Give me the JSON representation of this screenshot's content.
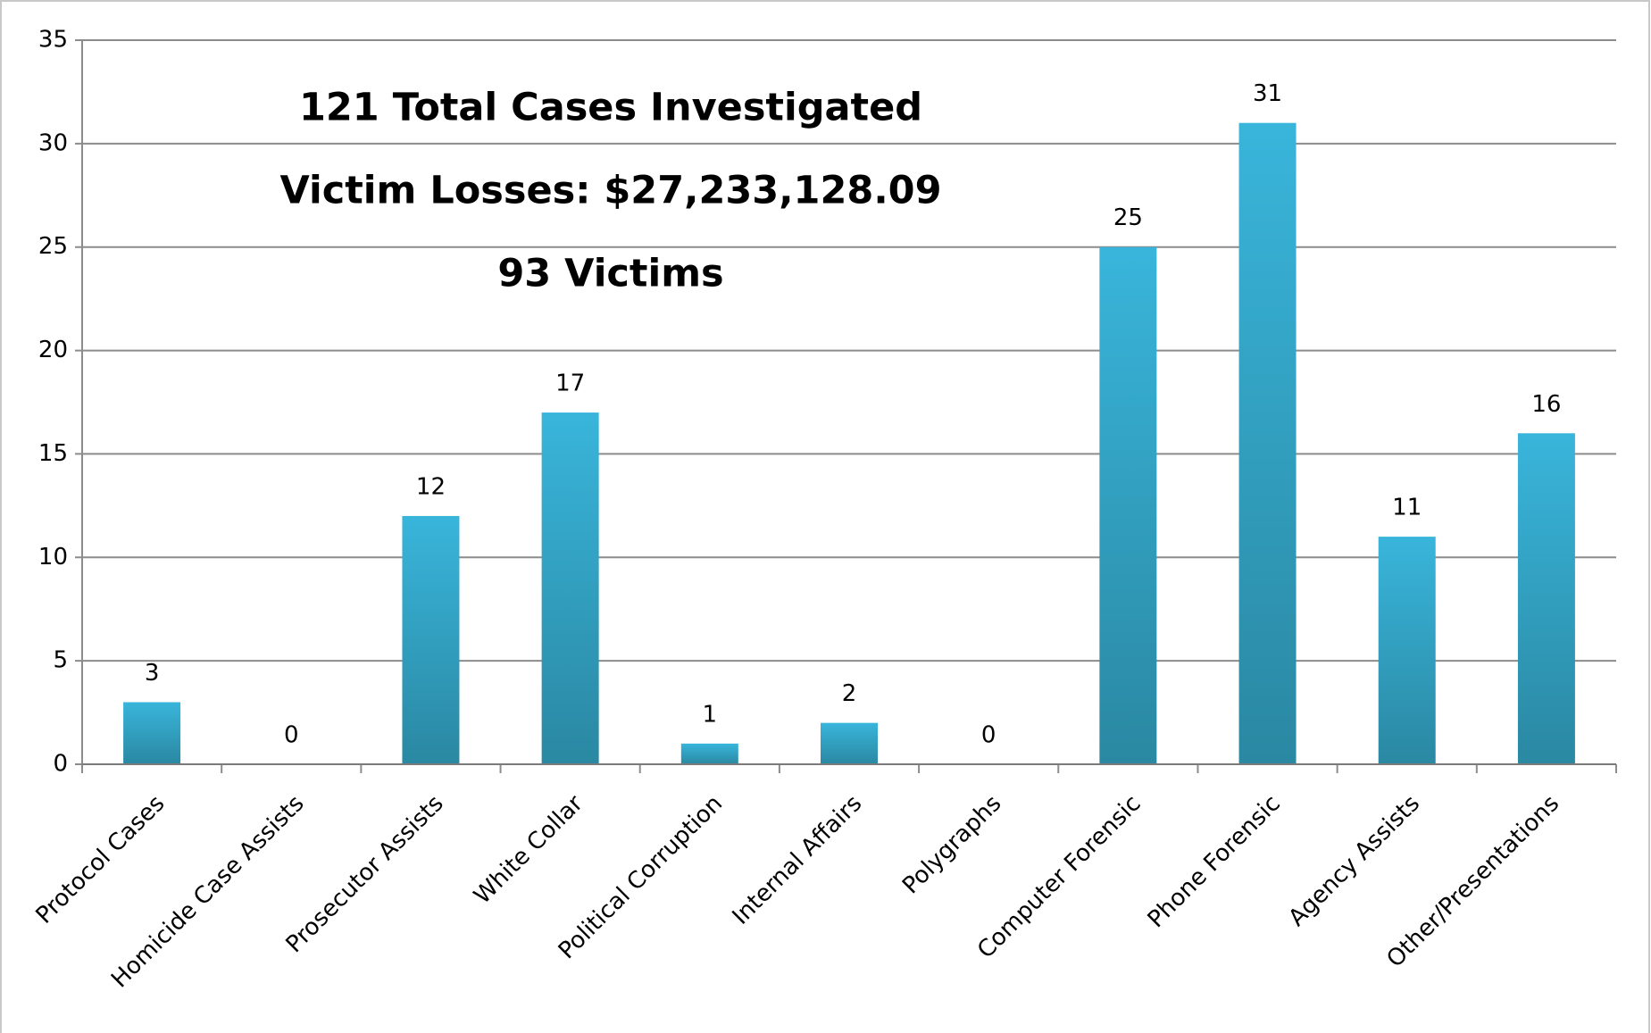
{
  "chart_data": {
    "type": "bar",
    "annotations": [
      "121 Total Cases Investigated",
      "Victim Losses:  $27,233,128.09",
      "93 Victims"
    ],
    "categories": [
      "Protocol Cases",
      "Homicide Case Assists",
      "Prosecutor Assists",
      "White Collar",
      "Political Corruption",
      "Internal Affairs",
      "Polygraphs",
      "Computer Forensic",
      "Phone Forensic",
      "Agency Assists",
      "Other/Presentations"
    ],
    "values": [
      3,
      0,
      12,
      17,
      1,
      2,
      0,
      25,
      31,
      11,
      16
    ],
    "colors": [
      "#39b5db",
      "#2a88a2"
    ],
    "ylim": [
      0,
      35
    ],
    "yticks": [
      0,
      5,
      10,
      15,
      20,
      25,
      30,
      35
    ],
    "grid": true
  }
}
